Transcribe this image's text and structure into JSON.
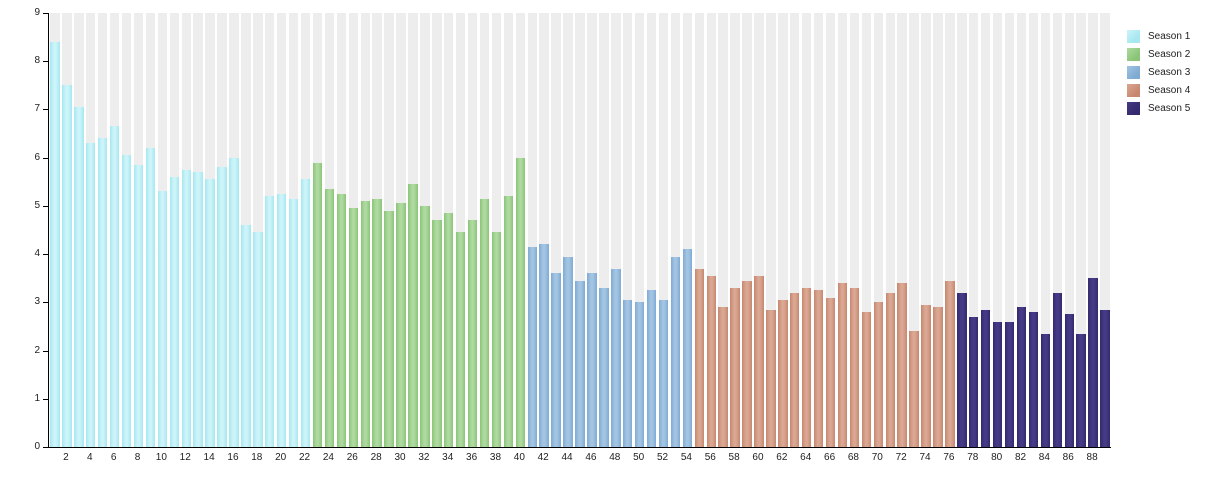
{
  "chart_data": {
    "type": "bar",
    "title": "",
    "xlabel": "",
    "ylabel": "",
    "ylim": [
      0,
      9
    ],
    "y_ticks": [
      0,
      1,
      2,
      3,
      4,
      5,
      6,
      7,
      8,
      9
    ],
    "x_tick_labels": [
      2,
      4,
      6,
      8,
      10,
      12,
      14,
      16,
      18,
      20,
      22,
      24,
      26,
      28,
      30,
      32,
      34,
      36,
      38,
      40,
      42,
      44,
      46,
      48,
      50,
      52,
      54,
      56,
      58,
      60,
      62,
      64,
      66,
      68,
      70,
      72,
      74,
      76,
      78,
      80,
      82,
      84,
      86,
      88
    ],
    "x_unit": "episode-number",
    "grid": "off",
    "background_tracks": true,
    "track_color": "#ededed",
    "legend_position": "top-right",
    "axis_color": "#000000",
    "text_color": "#222222",
    "series": [
      {
        "name": "Season 1",
        "color": "#a6e7f0",
        "color_light": "#ccf4f9",
        "start_episode": 1,
        "values": [
          8.4,
          7.5,
          7.05,
          6.3,
          6.4,
          6.65,
          6.05,
          5.85,
          6.2,
          5.3,
          5.6,
          5.75,
          5.7,
          5.55,
          5.8,
          6.0,
          4.6,
          4.45,
          5.2,
          5.25,
          5.15,
          5.55
        ]
      },
      {
        "name": "Season 2",
        "color": "#8ac577",
        "color_light": "#aed9a0",
        "start_episode": 23,
        "values": [
          5.9,
          5.35,
          5.25,
          4.95,
          5.1,
          5.15,
          4.9,
          5.05,
          5.45,
          5.0,
          4.7,
          4.85,
          4.45,
          4.7,
          5.15,
          4.45,
          5.2,
          6.0
        ]
      },
      {
        "name": "Season 3",
        "color": "#7fabd3",
        "color_light": "#a3c4e2",
        "start_episode": 41,
        "values": [
          4.15,
          4.2,
          3.6,
          3.95,
          3.45,
          3.6,
          3.3,
          3.7,
          3.05,
          3.0,
          3.25,
          3.05,
          3.95,
          4.1
        ]
      },
      {
        "name": "Season 4",
        "color": "#c8876f",
        "color_light": "#d9a792",
        "start_episode": 55,
        "values": [
          3.7,
          3.55,
          2.9,
          3.3,
          3.45,
          3.55,
          2.85,
          3.05,
          3.2,
          3.3,
          3.25,
          3.1,
          3.4,
          3.3,
          2.8,
          3.0,
          3.2,
          3.4,
          2.4,
          2.95,
          2.9,
          3.45
        ]
      },
      {
        "name": "Season 5",
        "color": "#342a6e",
        "color_light": "#453a85",
        "start_episode": 77,
        "values": [
          3.2,
          2.7,
          2.85,
          2.6,
          2.6,
          2.9,
          2.8,
          2.35,
          3.2,
          2.75,
          2.35,
          3.5,
          2.85
        ]
      }
    ]
  }
}
